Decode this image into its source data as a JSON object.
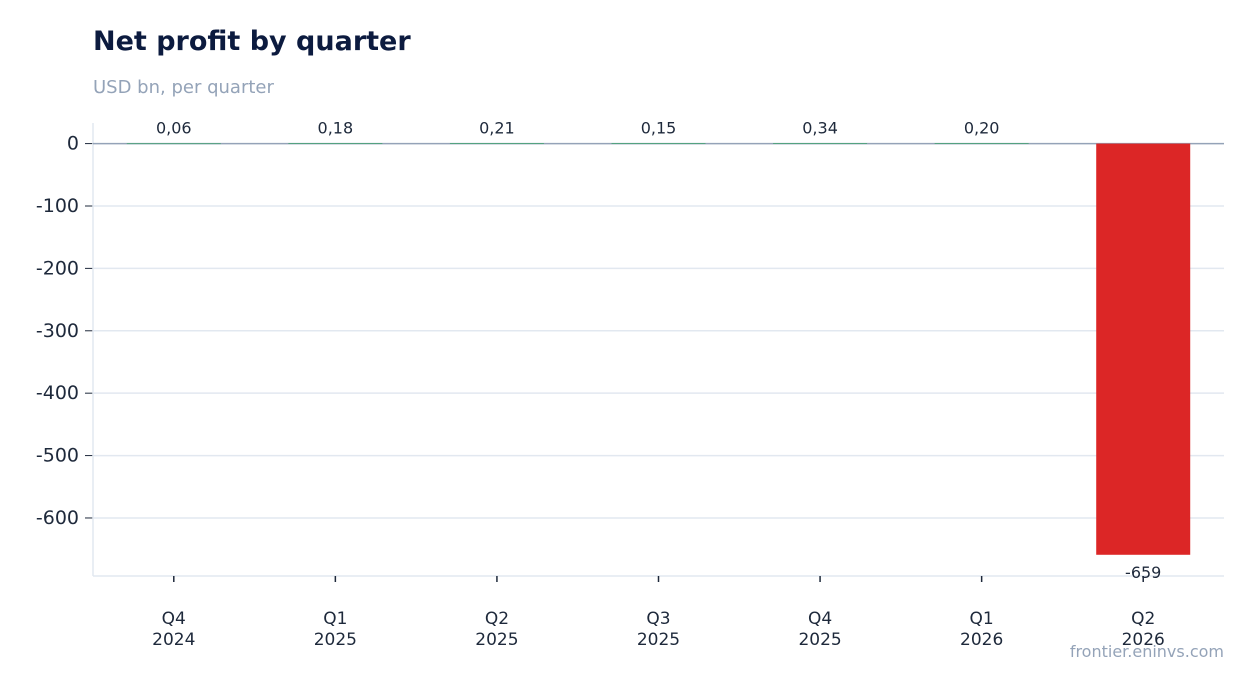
{
  "chart_data": {
    "type": "bar",
    "title": "Net profit by quarter",
    "subtitle": "USD bn, per quarter",
    "categories": [
      [
        "Q4",
        "2024"
      ],
      [
        "Q1",
        "2025"
      ],
      [
        "Q2",
        "2025"
      ],
      [
        "Q3",
        "2025"
      ],
      [
        "Q4",
        "2025"
      ],
      [
        "Q1",
        "2026"
      ],
      [
        "Q2",
        "2026"
      ]
    ],
    "values": [
      0.06,
      0.18,
      0.21,
      0.15,
      0.34,
      0.2,
      -659
    ],
    "value_labels": [
      "0,06",
      "0,18",
      "0,21",
      "0,15",
      "0,34",
      "0,20",
      "-659"
    ],
    "yticks": [
      0,
      -100,
      -200,
      -300,
      -400,
      -500,
      -600
    ],
    "ylim": [
      -693,
      33
    ],
    "grid": true,
    "colors": {
      "positive": "#16a34a",
      "negative": "#dc2626",
      "grid": "#e2e8f0",
      "zero_line": "#94a3b8"
    }
  },
  "source": "frontier.eninvs.com"
}
